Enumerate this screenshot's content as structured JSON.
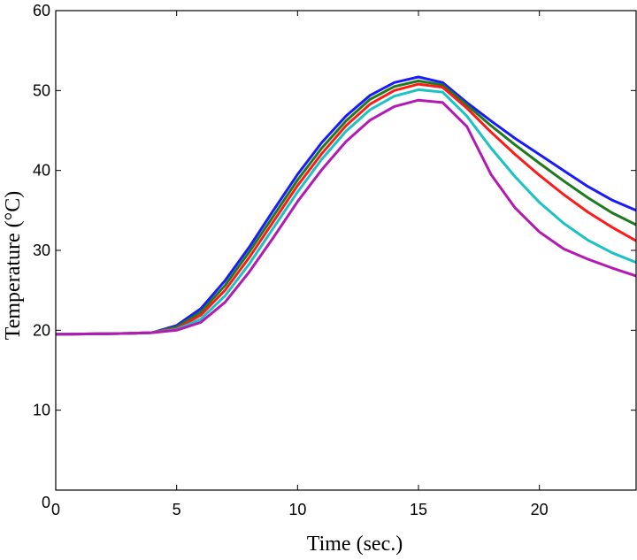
{
  "chart_data": {
    "type": "line",
    "title": "",
    "xlabel": "Time (sec.)",
    "ylabel": "Temperature (°C)",
    "xlim": [
      0,
      24
    ],
    "ylim": [
      0,
      60
    ],
    "xticks": [
      0,
      5,
      10,
      15,
      20
    ],
    "yticks": [
      0,
      10,
      20,
      30,
      40,
      50,
      60
    ],
    "grid": false,
    "series": [
      {
        "name": "blue",
        "color": "#1a1aff",
        "points": [
          [
            0,
            19.5
          ],
          [
            3,
            19.6
          ],
          [
            4,
            19.7
          ],
          [
            5,
            20.6
          ],
          [
            6,
            22.7
          ],
          [
            7,
            26.2
          ],
          [
            8,
            30.4
          ],
          [
            9,
            35.0
          ],
          [
            10,
            39.5
          ],
          [
            11,
            43.5
          ],
          [
            12,
            46.8
          ],
          [
            13,
            49.4
          ],
          [
            14,
            51.0
          ],
          [
            15,
            51.7
          ],
          [
            16,
            51.0
          ],
          [
            17,
            48.5
          ],
          [
            18,
            46.2
          ],
          [
            19,
            44.0
          ],
          [
            20,
            42.0
          ],
          [
            21,
            40.0
          ],
          [
            22,
            38.0
          ],
          [
            23,
            36.3
          ],
          [
            24,
            35.0
          ]
        ]
      },
      {
        "name": "green",
        "color": "#1f7a1f",
        "points": [
          [
            0,
            19.5
          ],
          [
            3,
            19.6
          ],
          [
            4,
            19.7
          ],
          [
            5,
            20.4
          ],
          [
            6,
            22.3
          ],
          [
            7,
            25.6
          ],
          [
            8,
            29.8
          ],
          [
            9,
            34.3
          ],
          [
            10,
            38.8
          ],
          [
            11,
            42.8
          ],
          [
            12,
            46.2
          ],
          [
            13,
            48.9
          ],
          [
            14,
            50.5
          ],
          [
            15,
            51.2
          ],
          [
            16,
            50.7
          ],
          [
            17,
            48.2
          ],
          [
            18,
            45.6
          ],
          [
            19,
            43.2
          ],
          [
            20,
            40.9
          ],
          [
            21,
            38.7
          ],
          [
            22,
            36.6
          ],
          [
            23,
            34.7
          ],
          [
            24,
            33.2
          ]
        ]
      },
      {
        "name": "red",
        "color": "#ff1a1a",
        "points": [
          [
            0,
            19.5
          ],
          [
            3,
            19.6
          ],
          [
            4,
            19.7
          ],
          [
            5,
            20.2
          ],
          [
            6,
            21.9
          ],
          [
            7,
            25.0
          ],
          [
            8,
            29.1
          ],
          [
            9,
            33.6
          ],
          [
            10,
            38.1
          ],
          [
            11,
            42.1
          ],
          [
            12,
            45.6
          ],
          [
            13,
            48.3
          ],
          [
            14,
            50.0
          ],
          [
            15,
            50.8
          ],
          [
            16,
            50.4
          ],
          [
            17,
            47.8
          ],
          [
            18,
            44.8
          ],
          [
            19,
            42.0
          ],
          [
            20,
            39.4
          ],
          [
            21,
            37.0
          ],
          [
            22,
            34.8
          ],
          [
            23,
            32.9
          ],
          [
            24,
            31.2
          ]
        ]
      },
      {
        "name": "cyan",
        "color": "#1ac3c3",
        "points": [
          [
            0,
            19.5
          ],
          [
            3,
            19.6
          ],
          [
            4,
            19.7
          ],
          [
            5,
            20.1
          ],
          [
            6,
            21.4
          ],
          [
            7,
            24.3
          ],
          [
            8,
            28.3
          ],
          [
            9,
            32.8
          ],
          [
            10,
            37.3
          ],
          [
            11,
            41.4
          ],
          [
            12,
            44.9
          ],
          [
            13,
            47.6
          ],
          [
            14,
            49.3
          ],
          [
            15,
            50.1
          ],
          [
            16,
            49.8
          ],
          [
            17,
            46.8
          ],
          [
            18,
            42.8
          ],
          [
            19,
            39.2
          ],
          [
            20,
            36.0
          ],
          [
            21,
            33.4
          ],
          [
            22,
            31.3
          ],
          [
            23,
            29.7
          ],
          [
            24,
            28.5
          ]
        ]
      },
      {
        "name": "magenta",
        "color": "#b31ab3",
        "points": [
          [
            0,
            19.5
          ],
          [
            3,
            19.6
          ],
          [
            4,
            19.7
          ],
          [
            5,
            20.0
          ],
          [
            6,
            21.0
          ],
          [
            7,
            23.5
          ],
          [
            8,
            27.3
          ],
          [
            9,
            31.6
          ],
          [
            10,
            36.1
          ],
          [
            11,
            40.1
          ],
          [
            12,
            43.6
          ],
          [
            13,
            46.3
          ],
          [
            14,
            48.0
          ],
          [
            15,
            48.8
          ],
          [
            16,
            48.5
          ],
          [
            17,
            45.5
          ],
          [
            18,
            39.5
          ],
          [
            19,
            35.3
          ],
          [
            20,
            32.3
          ],
          [
            21,
            30.2
          ],
          [
            22,
            28.9
          ],
          [
            23,
            27.8
          ],
          [
            24,
            26.8
          ]
        ]
      }
    ]
  }
}
